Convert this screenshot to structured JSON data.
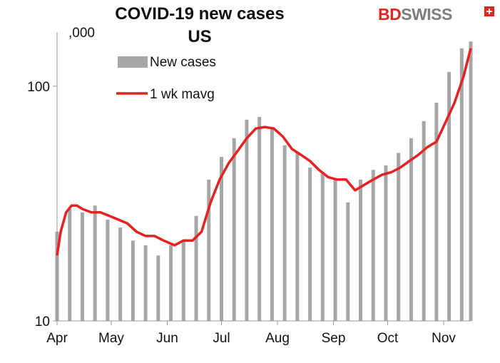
{
  "brand": {
    "part1": "BD",
    "part2": "SWISS"
  },
  "chart_data": {
    "type": "bar",
    "title": "COVID-19  new cases",
    "subtitle": "US",
    "ylabel": ",000",
    "y_scale": "log",
    "ylim": [
      10,
      170
    ],
    "y_ticks": [
      10,
      100
    ],
    "y_tick_labels": [
      "10",
      "100"
    ],
    "x_range": [
      "2020-04-01",
      "2020-11-16"
    ],
    "x_ticks": [
      "2020-04-01",
      "2020-05-01",
      "2020-06-01",
      "2020-07-01",
      "2020-08-01",
      "2020-09-01",
      "2020-10-01",
      "2020-11-01"
    ],
    "x_tick_labels": [
      "Apr",
      "May",
      "Jun",
      "Jul",
      "Aug",
      "Sep",
      "Oct",
      "Nov"
    ],
    "grid": false,
    "legend_position": "top-left",
    "series": [
      {
        "name": "New cases",
        "type": "bar",
        "color": "#a6a6a6",
        "x": [
          "2020-04-01",
          "2020-04-08",
          "2020-04-15",
          "2020-04-22",
          "2020-04-29",
          "2020-05-06",
          "2020-05-13",
          "2020-05-20",
          "2020-05-27",
          "2020-06-03",
          "2020-06-10",
          "2020-06-17",
          "2020-06-24",
          "2020-07-01",
          "2020-07-08",
          "2020-07-15",
          "2020-07-22",
          "2020-07-29",
          "2020-08-05",
          "2020-08-12",
          "2020-08-19",
          "2020-08-26",
          "2020-09-02",
          "2020-09-09",
          "2020-09-16",
          "2020-09-23",
          "2020-09-30",
          "2020-10-07",
          "2020-10-14",
          "2020-10-21",
          "2020-10-28",
          "2020-11-04",
          "2020-11-11",
          "2020-11-16"
        ],
        "values": [
          24,
          30,
          29,
          31,
          27,
          25,
          22,
          21,
          19,
          21,
          22,
          28,
          40,
          50,
          60,
          72,
          74,
          66,
          56,
          52,
          45,
          43,
          40,
          32,
          40,
          44,
          46,
          52,
          60,
          71,
          85,
          115,
          145,
          155
        ]
      },
      {
        "name": "1 wk mavg",
        "type": "line",
        "color": "#e8201f",
        "x": [
          "2020-04-01",
          "2020-04-03",
          "2020-04-06",
          "2020-04-09",
          "2020-04-12",
          "2020-04-15",
          "2020-04-20",
          "2020-04-25",
          "2020-04-30",
          "2020-05-05",
          "2020-05-10",
          "2020-05-15",
          "2020-05-20",
          "2020-05-25",
          "2020-05-30",
          "2020-06-05",
          "2020-06-10",
          "2020-06-15",
          "2020-06-20",
          "2020-06-25",
          "2020-06-30",
          "2020-07-05",
          "2020-07-10",
          "2020-07-15",
          "2020-07-20",
          "2020-07-25",
          "2020-07-30",
          "2020-08-04",
          "2020-08-09",
          "2020-08-14",
          "2020-08-19",
          "2020-08-24",
          "2020-08-29",
          "2020-09-03",
          "2020-09-08",
          "2020-09-13",
          "2020-09-18",
          "2020-09-23",
          "2020-09-28",
          "2020-10-03",
          "2020-10-08",
          "2020-10-13",
          "2020-10-18",
          "2020-10-23",
          "2020-10-28",
          "2020-11-02",
          "2020-11-07",
          "2020-11-12",
          "2020-11-16"
        ],
        "values": [
          19,
          24,
          29,
          31,
          31,
          30,
          29,
          29,
          28,
          27,
          26,
          24,
          23,
          23,
          22,
          21,
          22,
          22,
          24,
          32,
          40,
          47,
          53,
          60,
          66,
          67,
          66,
          61,
          54,
          51,
          48,
          44,
          41,
          40,
          40,
          36,
          38,
          40,
          42,
          43,
          45,
          48,
          51,
          55,
          58,
          70,
          85,
          110,
          145
        ]
      }
    ]
  }
}
